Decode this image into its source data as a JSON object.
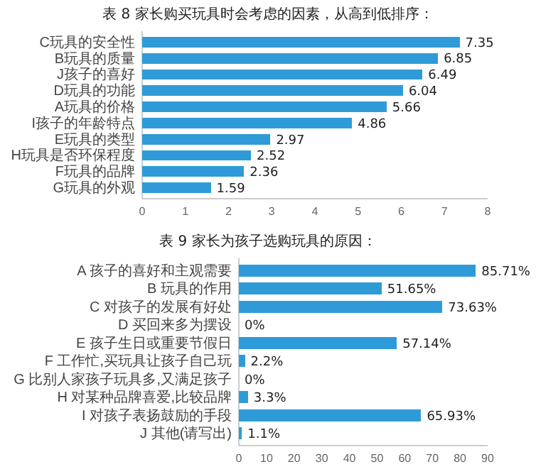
{
  "chart_data": [
    {
      "type": "bar",
      "orientation": "horizontal",
      "title": "表 8  家长购买玩具时会考虑的因素，从高到低排序：",
      "categories": [
        "C玩具的安全性",
        "B玩具的质量",
        "J孩子的喜好",
        "D玩具的功能",
        "A玩具的价格",
        "I孩子的年龄特点",
        "E玩具的类型",
        "H玩具是否环保程度",
        "F玩具的品牌",
        "G玩具的外观"
      ],
      "values": [
        7.35,
        6.85,
        6.49,
        6.04,
        5.66,
        4.86,
        2.97,
        2.52,
        2.36,
        1.59
      ],
      "color": "#2e9bd8",
      "data_labels": true,
      "xlim": [
        0,
        8
      ],
      "xticks": [
        0,
        1,
        2,
        3,
        4,
        5,
        6,
        7,
        8
      ],
      "grid": false
    },
    {
      "type": "bar",
      "orientation": "horizontal",
      "title": "表 9  家长为孩子选购玩具的原因：",
      "categories": [
        "A 孩子的喜好和主观需要",
        "B 玩具的作用",
        "C 对孩子的发展有好处",
        "D 买回来多为摆设",
        "E 孩子生日或重要节假日",
        "F 工作忙,买玩具让孩子自己玩",
        "G 比别人家孩子玩具多,又满足孩子",
        "H 对某种品牌喜爱,比较品牌",
        "I 对孩子表扬鼓励的手段",
        "J 其他(请写出)"
      ],
      "values": [
        85.71,
        51.65,
        73.63,
        0,
        57.14,
        2.2,
        0,
        3.3,
        65.93,
        1.1
      ],
      "value_labels": [
        "85.71%",
        "51.65%",
        "73.63%",
        "0%",
        "57.14%",
        "2.2%",
        "0%",
        "3.3%",
        "65.93%",
        "1.1%"
      ],
      "color": "#2e9bd8",
      "xlim": [
        0,
        90
      ],
      "xticks": [
        0,
        10,
        20,
        30,
        40,
        50,
        60,
        70,
        80,
        90
      ],
      "grid": false
    }
  ]
}
